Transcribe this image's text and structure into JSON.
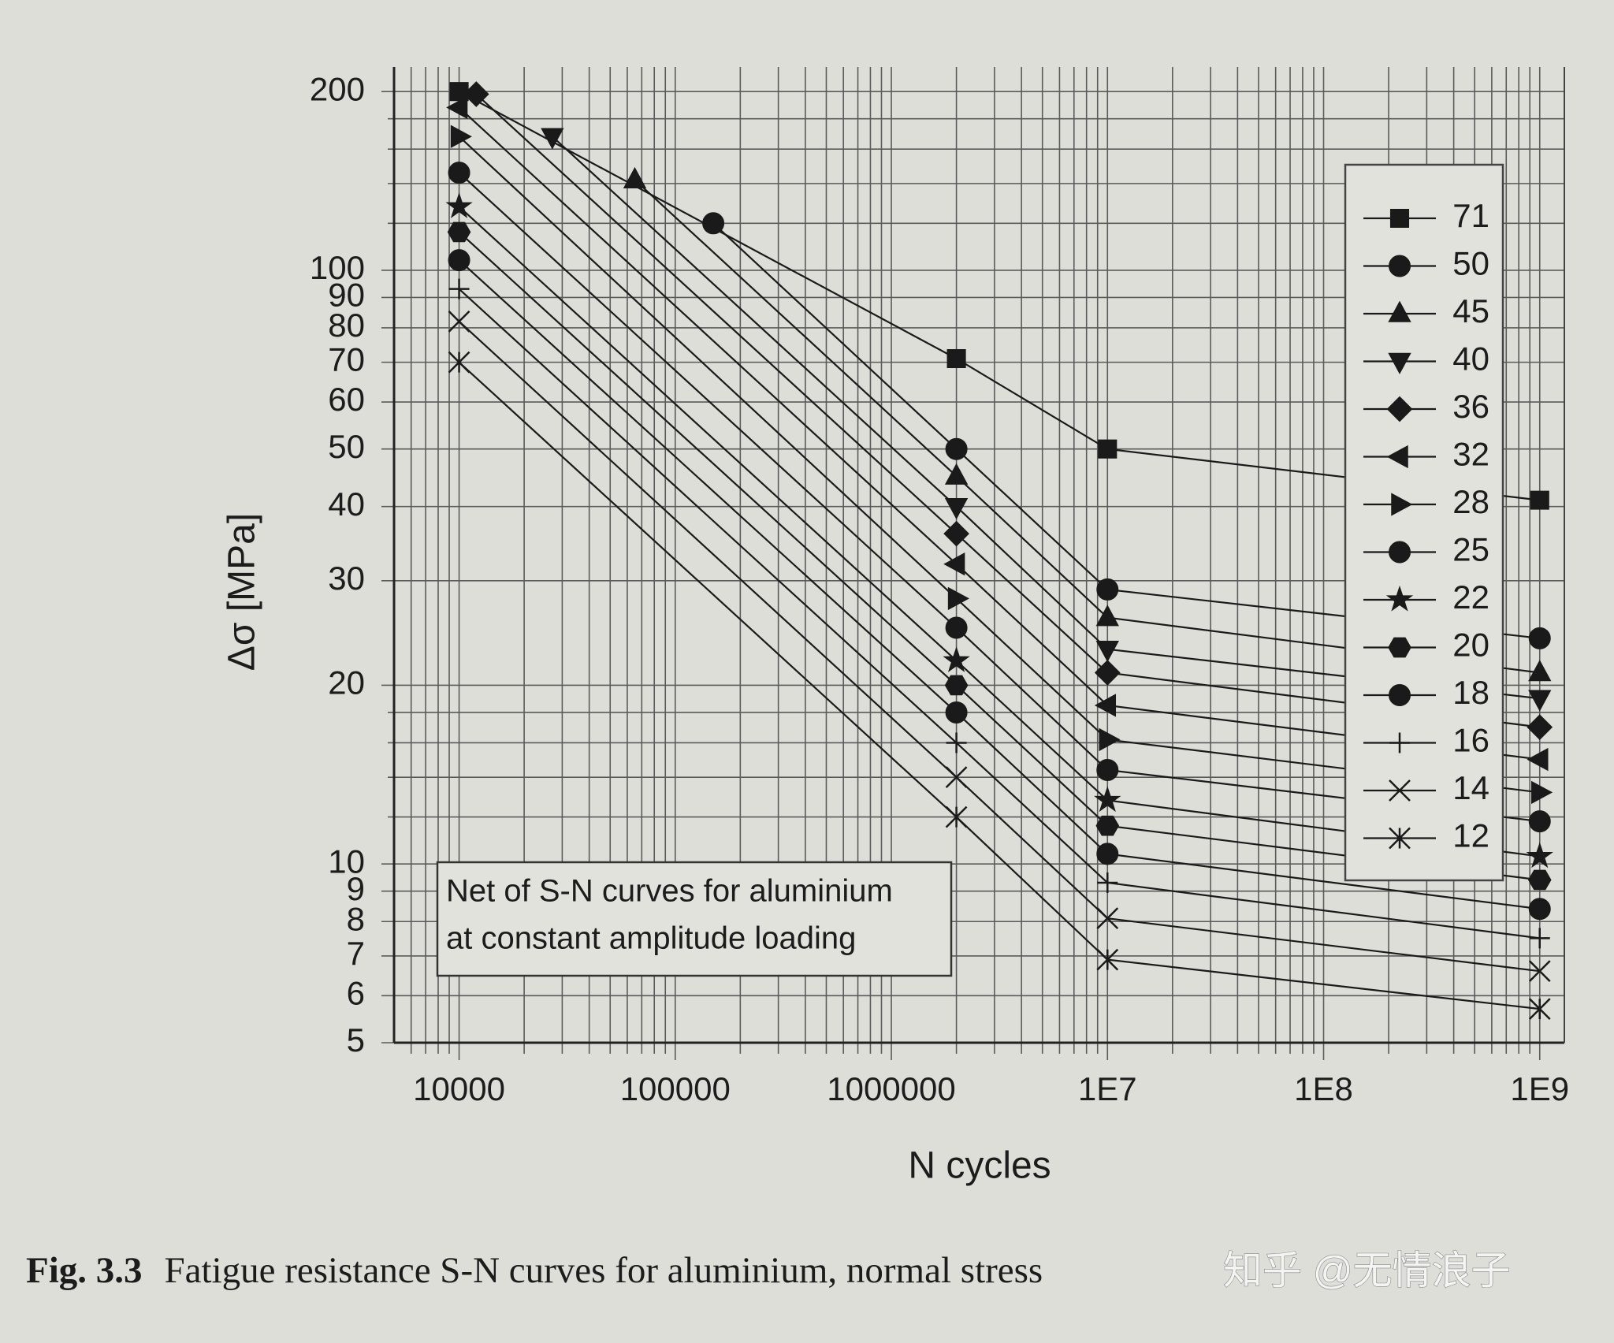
{
  "chart_data": {
    "type": "line",
    "x_label": "N cycles",
    "y_label": "Δσ [MPa]",
    "annotation": [
      "Net of S-N curves for aluminium",
      "at constant amplitude loading"
    ],
    "xlog": true,
    "ylog": true,
    "grid": true,
    "legend": "right",
    "xlim": [
      5000,
      1300000000
    ],
    "ylim": [
      5,
      220
    ],
    "xticks": [
      10000,
      100000,
      1000000,
      {
        "value": 10000000,
        "label": "1E7"
      },
      {
        "value": 100000000,
        "label": "1E8"
      },
      {
        "value": 1000000000,
        "label": "1E9"
      }
    ],
    "xminorticks": [
      6000,
      7000,
      8000,
      9000,
      20000,
      30000,
      40000,
      50000,
      60000,
      70000,
      80000,
      90000,
      200000,
      300000,
      400000,
      500000,
      600000,
      700000,
      800000,
      900000,
      2000000,
      3000000,
      4000000,
      5000000,
      6000000,
      7000000,
      8000000,
      9000000,
      20000000,
      30000000,
      40000000,
      50000000,
      60000000,
      70000000,
      80000000,
      90000000,
      200000000,
      300000000,
      400000000,
      500000000,
      600000000,
      700000000,
      800000000,
      900000000
    ],
    "yticks": [
      5,
      6,
      7,
      8,
      9,
      10,
      20,
      30,
      40,
      50,
      60,
      70,
      80,
      90,
      100,
      200
    ],
    "yminorticks": [
      12,
      14,
      16,
      18,
      120,
      140,
      160,
      180
    ],
    "series": [
      {
        "name": "71",
        "marker": "square",
        "color": "#1a1a1a",
        "x": [
          10000,
          2000000,
          10000000,
          1000000000
        ],
        "values": [
          200,
          71,
          50,
          41
        ]
      },
      {
        "name": "50",
        "marker": "circle",
        "color": "#1a1a1a",
        "x": [
          150000,
          2000000,
          10000000,
          1000000000
        ],
        "values": [
          120,
          50,
          29,
          24
        ]
      },
      {
        "name": "45",
        "marker": "triangle-up",
        "color": "#1a1a1a",
        "x": [
          65000,
          2000000,
          10000000,
          1000000000
        ],
        "values": [
          142,
          45,
          26,
          21
        ]
      },
      {
        "name": "40",
        "marker": "triangle-down",
        "color": "#1a1a1a",
        "x": [
          27000,
          2000000,
          10000000,
          1000000000
        ],
        "values": [
          168,
          40,
          23,
          19
        ]
      },
      {
        "name": "36",
        "marker": "diamond",
        "color": "#1a1a1a",
        "x": [
          12000,
          2000000,
          10000000,
          1000000000
        ],
        "values": [
          198,
          36,
          21,
          17
        ]
      },
      {
        "name": "32",
        "marker": "triangle-left",
        "color": "#1a1a1a",
        "x": [
          10000,
          2000000,
          10000000,
          1000000000
        ],
        "values": [
          188,
          32,
          18.5,
          15
        ]
      },
      {
        "name": "28",
        "marker": "triangle-right",
        "color": "#1a1a1a",
        "x": [
          10000,
          2000000,
          10000000,
          1000000000
        ],
        "values": [
          168,
          28,
          16.2,
          13.2
        ]
      },
      {
        "name": "25",
        "marker": "circle",
        "color": "#1a1a1a",
        "x": [
          10000,
          2000000,
          10000000,
          1000000000
        ],
        "values": [
          146,
          25,
          14.4,
          11.8
        ]
      },
      {
        "name": "22",
        "marker": "star",
        "color": "#1a1a1a",
        "x": [
          10000,
          2000000,
          10000000,
          1000000000
        ],
        "values": [
          128,
          22,
          12.8,
          10.3
        ]
      },
      {
        "name": "20",
        "marker": "hexagon",
        "color": "#1a1a1a",
        "x": [
          10000,
          2000000,
          10000000,
          1000000000
        ],
        "values": [
          116,
          20,
          11.6,
          9.4
        ]
      },
      {
        "name": "18",
        "marker": "circle",
        "color": "#1a1a1a",
        "x": [
          10000,
          2000000,
          10000000,
          1000000000
        ],
        "values": [
          104,
          18,
          10.4,
          8.4
        ]
      },
      {
        "name": "16",
        "marker": "plus",
        "color": "#1a1a1a",
        "x": [
          10000,
          2000000,
          10000000,
          1000000000
        ],
        "values": [
          93,
          16,
          9.3,
          7.5
        ]
      },
      {
        "name": "14",
        "marker": "x",
        "color": "#1a1a1a",
        "x": [
          10000,
          2000000,
          10000000,
          1000000000
        ],
        "values": [
          82,
          14,
          8.1,
          6.6
        ]
      },
      {
        "name": "12",
        "marker": "asterisk",
        "color": "#1a1a1a",
        "x": [
          10000,
          2000000,
          10000000,
          1000000000
        ],
        "values": [
          70,
          12,
          6.9,
          5.7
        ]
      }
    ]
  },
  "caption": {
    "label": "Fig. 3.3",
    "text": "Fatigue resistance S-N curves for aluminium, normal stress"
  },
  "watermark": "知乎 @无情浪子"
}
